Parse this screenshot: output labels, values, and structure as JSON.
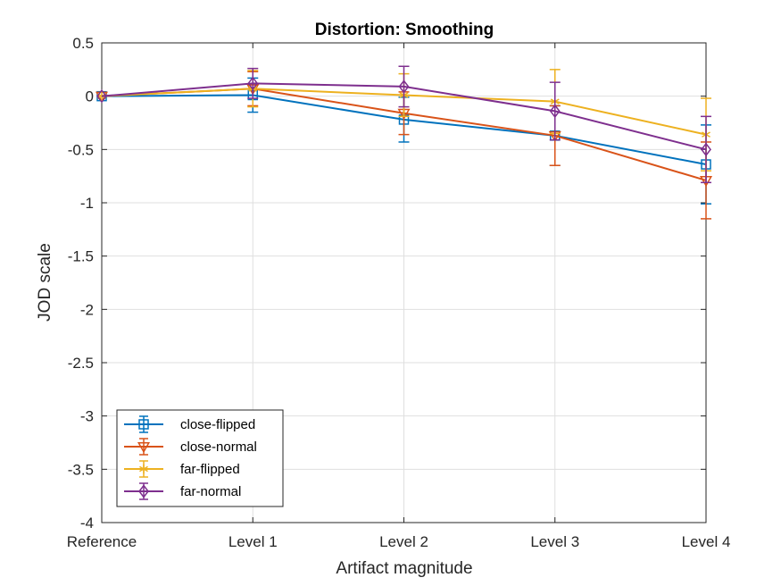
{
  "chart_data": {
    "type": "line",
    "title": "Distortion: Smoothing",
    "xlabel": "Artifact magnitude",
    "ylabel": "JOD scale",
    "categories": [
      "Reference",
      "Level 1",
      "Level 2",
      "Level 3",
      "Level 4"
    ],
    "ylim": [
      -4,
      0.5
    ],
    "yticks": [
      0.5,
      0,
      -0.5,
      -1,
      -1.5,
      -2,
      -2.5,
      -3,
      -3.5,
      -4
    ],
    "ytick_labels": [
      "0.5",
      "0",
      "-0.5",
      "-1",
      "-1.5",
      "-2",
      "-2.5",
      "-3",
      "-3.5",
      "-4"
    ],
    "grid": true,
    "legend_location": "bottom-left",
    "error_bars": true,
    "series": [
      {
        "name": "close-flipped",
        "color": "#0072BD",
        "marker": "square",
        "values": [
          0,
          0.01,
          -0.22,
          -0.37,
          -0.64
        ],
        "err": [
          0,
          0.16,
          0.21,
          0.28,
          0.37
        ]
      },
      {
        "name": "close-normal",
        "color": "#D95319",
        "marker": "triangle-down",
        "values": [
          0,
          0.07,
          -0.16,
          -0.37,
          -0.79
        ],
        "err": [
          0,
          0.16,
          0.2,
          0.28,
          0.36
        ]
      },
      {
        "name": "far-flipped",
        "color": "#EDB120",
        "marker": "asterisk",
        "values": [
          0,
          0.07,
          0.01,
          -0.05,
          -0.36
        ],
        "err": [
          0,
          0.17,
          0.2,
          0.3,
          0.34
        ]
      },
      {
        "name": "far-normal",
        "color": "#7E2F8E",
        "marker": "diamond",
        "values": [
          0,
          0.12,
          0.09,
          -0.14,
          -0.5
        ],
        "err": [
          0,
          0.14,
          0.19,
          0.27,
          0.31
        ]
      }
    ]
  }
}
